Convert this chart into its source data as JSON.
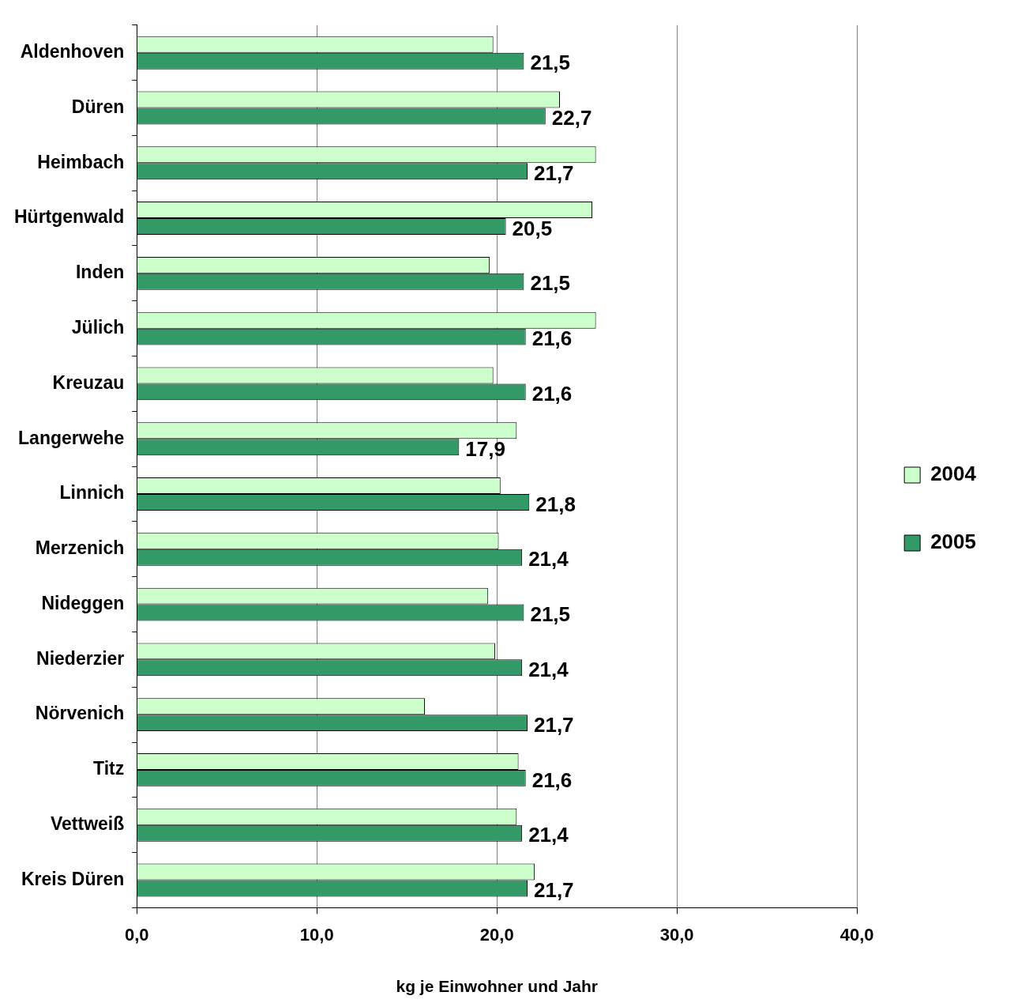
{
  "chart_data": {
    "type": "bar",
    "orientation": "horizontal",
    "xlabel": "kg je Einwohner und Jahr",
    "categories": [
      "Aldenhoven",
      "Düren",
      "Heimbach",
      "Hürtgenwald",
      "Inden",
      "Jülich",
      "Kreuzau",
      "Langerwehe",
      "Linnich",
      "Merzenich",
      "Nideggen",
      "Niederzier",
      "Nörvenich",
      "Titz",
      "Vettweiß",
      "Kreis Düren"
    ],
    "series": [
      {
        "name": "2004",
        "color": "#ccffcc",
        "values": [
          19.8,
          23.5,
          25.5,
          25.3,
          19.6,
          25.5,
          19.8,
          21.1,
          20.2,
          20.1,
          19.5,
          19.9,
          16.0,
          21.2,
          21.1,
          22.1
        ]
      },
      {
        "name": "2005",
        "color": "#339966",
        "values": [
          21.5,
          22.7,
          21.7,
          20.5,
          21.5,
          21.6,
          21.6,
          17.9,
          21.8,
          21.4,
          21.5,
          21.4,
          21.7,
          21.6,
          21.4,
          21.7
        ],
        "value_labels": [
          "21,5",
          "22,7",
          "21,7",
          "20,5",
          "21,5",
          "21,6",
          "21,6",
          "17,9",
          "21,8",
          "21,4",
          "21,5",
          "21,4",
          "21,7",
          "21,6",
          "21,4",
          "21,7"
        ]
      }
    ],
    "xlim": [
      0,
      40
    ],
    "xticks": [
      {
        "value": 0,
        "label": "0,0"
      },
      {
        "value": 10,
        "label": "10,0"
      },
      {
        "value": 20,
        "label": "20,0"
      },
      {
        "value": 30,
        "label": "30,0"
      },
      {
        "value": 40,
        "label": "40,0"
      }
    ],
    "grid": "x",
    "legend": "right"
  }
}
